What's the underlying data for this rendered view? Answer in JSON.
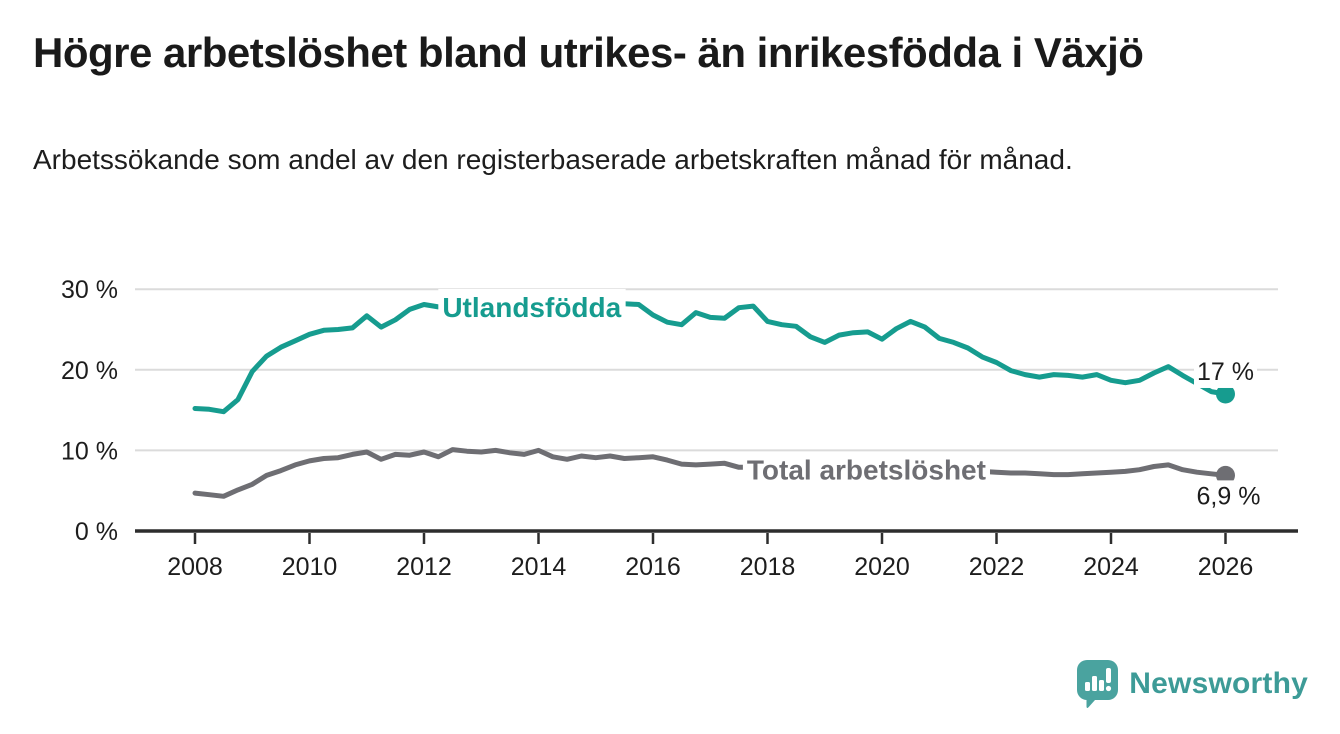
{
  "header": {
    "title": "Högre arbetslöshet bland utrikes- än inrikesfödda i Växjö",
    "subtitle": "Arbetssökande som andel av den registerbaserade arbetskraften månad för månad."
  },
  "footer": {
    "brand": "Newsworthy"
  },
  "colors": {
    "accent_teal": "#169c8f",
    "series_gray": "#6e6e73",
    "gridline": "#dbdbdb",
    "axis": "#2d2d2d",
    "text": "#1d1d1d",
    "logo_bubble": "#4aa39f",
    "logo_text": "#3d9b97"
  },
  "chart_data": {
    "type": "line",
    "grid": "horizontal",
    "legend_position": "inline-labels",
    "xlabel": "",
    "ylabel": "",
    "xlim": [
      2008,
      2026.4
    ],
    "ylim": [
      0,
      33.5
    ],
    "x_ticks": [
      "2008",
      "2010",
      "2012",
      "2014",
      "2016",
      "2018",
      "2020",
      "2022",
      "2024",
      "2026"
    ],
    "y_ticks": [
      {
        "value": 30,
        "label": "30 %"
      },
      {
        "value": 20,
        "label": "20 %"
      },
      {
        "value": 10,
        "label": "10 %"
      },
      {
        "value": 0,
        "label": "0 %"
      }
    ],
    "series": [
      {
        "id": "utlandsfodda",
        "name": "Utlandsfödda",
        "color": "#169c8f",
        "inline_label": {
          "text": "Utlandsfödda",
          "x": 2012.32,
          "y": 27.8
        },
        "end_label": "17 %",
        "end_value": 17,
        "points": [
          [
            2008.0,
            15.2
          ],
          [
            2008.25,
            15.1
          ],
          [
            2008.5,
            14.8
          ],
          [
            2008.75,
            16.3
          ],
          [
            2009.0,
            19.8
          ],
          [
            2009.25,
            21.7
          ],
          [
            2009.5,
            22.8
          ],
          [
            2009.75,
            23.6
          ],
          [
            2010.0,
            24.4
          ],
          [
            2010.25,
            24.9
          ],
          [
            2010.5,
            25.0
          ],
          [
            2010.75,
            25.2
          ],
          [
            2011.0,
            26.7
          ],
          [
            2011.25,
            25.3
          ],
          [
            2011.5,
            26.2
          ],
          [
            2011.75,
            27.5
          ],
          [
            2012.0,
            28.1
          ],
          [
            2012.25,
            27.8
          ],
          [
            2012.5,
            28.2
          ],
          [
            2012.75,
            28.5
          ],
          [
            2013.0,
            28.6
          ],
          [
            2013.25,
            28.8
          ],
          [
            2013.5,
            28.9
          ],
          [
            2013.75,
            28.7
          ],
          [
            2014.0,
            28.8
          ],
          [
            2014.25,
            28.6
          ],
          [
            2014.5,
            28.4
          ],
          [
            2014.75,
            28.5
          ],
          [
            2015.0,
            28.3
          ],
          [
            2015.25,
            28.4
          ],
          [
            2015.5,
            28.2
          ],
          [
            2015.75,
            28.1
          ],
          [
            2016.0,
            26.8
          ],
          [
            2016.25,
            25.9
          ],
          [
            2016.5,
            25.6
          ],
          [
            2016.75,
            27.1
          ],
          [
            2017.0,
            26.5
          ],
          [
            2017.25,
            26.4
          ],
          [
            2017.5,
            27.7
          ],
          [
            2017.75,
            27.9
          ],
          [
            2018.0,
            26.0
          ],
          [
            2018.25,
            25.6
          ],
          [
            2018.5,
            25.4
          ],
          [
            2018.75,
            24.1
          ],
          [
            2019.0,
            23.4
          ],
          [
            2019.25,
            24.3
          ],
          [
            2019.5,
            24.6
          ],
          [
            2019.75,
            24.7
          ],
          [
            2020.0,
            23.8
          ],
          [
            2020.25,
            25.1
          ],
          [
            2020.5,
            26.0
          ],
          [
            2020.75,
            25.3
          ],
          [
            2021.0,
            23.9
          ],
          [
            2021.25,
            23.4
          ],
          [
            2021.5,
            22.7
          ],
          [
            2021.75,
            21.6
          ],
          [
            2022.0,
            20.9
          ],
          [
            2022.25,
            19.9
          ],
          [
            2022.5,
            19.4
          ],
          [
            2022.75,
            19.1
          ],
          [
            2023.0,
            19.4
          ],
          [
            2023.25,
            19.3
          ],
          [
            2023.5,
            19.1
          ],
          [
            2023.75,
            19.4
          ],
          [
            2024.0,
            18.7
          ],
          [
            2024.25,
            18.4
          ],
          [
            2024.5,
            18.7
          ],
          [
            2024.75,
            19.6
          ],
          [
            2025.0,
            20.4
          ],
          [
            2025.25,
            19.3
          ],
          [
            2025.5,
            18.3
          ],
          [
            2025.75,
            17.3
          ],
          [
            2026.0,
            17.0
          ]
        ]
      },
      {
        "id": "total-arbetsloshet",
        "name": "Total arbetslöshet",
        "color": "#6e6e73",
        "inline_label": {
          "text": "Total arbetslöshet",
          "x": 2017.64,
          "y": 7.6
        },
        "end_label": "6,9 %",
        "end_value": 6.9,
        "points": [
          [
            2008.0,
            4.7
          ],
          [
            2008.25,
            4.5
          ],
          [
            2008.5,
            4.3
          ],
          [
            2008.75,
            5.1
          ],
          [
            2009.0,
            5.8
          ],
          [
            2009.25,
            6.9
          ],
          [
            2009.5,
            7.5
          ],
          [
            2009.75,
            8.2
          ],
          [
            2010.0,
            8.7
          ],
          [
            2010.25,
            9.0
          ],
          [
            2010.5,
            9.1
          ],
          [
            2010.75,
            9.5
          ],
          [
            2011.0,
            9.8
          ],
          [
            2011.25,
            8.9
          ],
          [
            2011.5,
            9.5
          ],
          [
            2011.75,
            9.4
          ],
          [
            2012.0,
            9.8
          ],
          [
            2012.25,
            9.2
          ],
          [
            2012.5,
            10.1
          ],
          [
            2012.75,
            9.9
          ],
          [
            2013.0,
            9.8
          ],
          [
            2013.25,
            10.0
          ],
          [
            2013.5,
            9.7
          ],
          [
            2013.75,
            9.5
          ],
          [
            2014.0,
            10.0
          ],
          [
            2014.25,
            9.2
          ],
          [
            2014.5,
            8.9
          ],
          [
            2014.75,
            9.3
          ],
          [
            2015.0,
            9.1
          ],
          [
            2015.25,
            9.3
          ],
          [
            2015.5,
            9.0
          ],
          [
            2015.75,
            9.1
          ],
          [
            2016.0,
            9.2
          ],
          [
            2016.25,
            8.8
          ],
          [
            2016.5,
            8.3
          ],
          [
            2016.75,
            8.2
          ],
          [
            2017.0,
            8.3
          ],
          [
            2017.25,
            8.4
          ],
          [
            2017.5,
            7.9
          ],
          [
            2017.75,
            7.9
          ],
          [
            2018.0,
            7.8
          ],
          [
            2018.25,
            7.7
          ],
          [
            2018.5,
            7.6
          ],
          [
            2018.75,
            7.5
          ],
          [
            2019.0,
            7.5
          ],
          [
            2019.25,
            7.4
          ],
          [
            2019.5,
            7.4
          ],
          [
            2019.75,
            7.5
          ],
          [
            2020.0,
            7.6
          ],
          [
            2020.25,
            7.9
          ],
          [
            2020.5,
            8.0
          ],
          [
            2020.75,
            7.9
          ],
          [
            2021.0,
            7.8
          ],
          [
            2021.25,
            7.6
          ],
          [
            2021.5,
            7.5
          ],
          [
            2021.75,
            7.4
          ],
          [
            2022.0,
            7.3
          ],
          [
            2022.25,
            7.2
          ],
          [
            2022.5,
            7.2
          ],
          [
            2022.75,
            7.1
          ],
          [
            2023.0,
            7.0
          ],
          [
            2023.25,
            7.0
          ],
          [
            2023.5,
            7.1
          ],
          [
            2023.75,
            7.2
          ],
          [
            2024.0,
            7.3
          ],
          [
            2024.25,
            7.4
          ],
          [
            2024.5,
            7.6
          ],
          [
            2024.75,
            8.0
          ],
          [
            2025.0,
            8.2
          ],
          [
            2025.25,
            7.6
          ],
          [
            2025.5,
            7.3
          ],
          [
            2025.75,
            7.1
          ],
          [
            2026.0,
            6.9
          ]
        ]
      }
    ]
  }
}
